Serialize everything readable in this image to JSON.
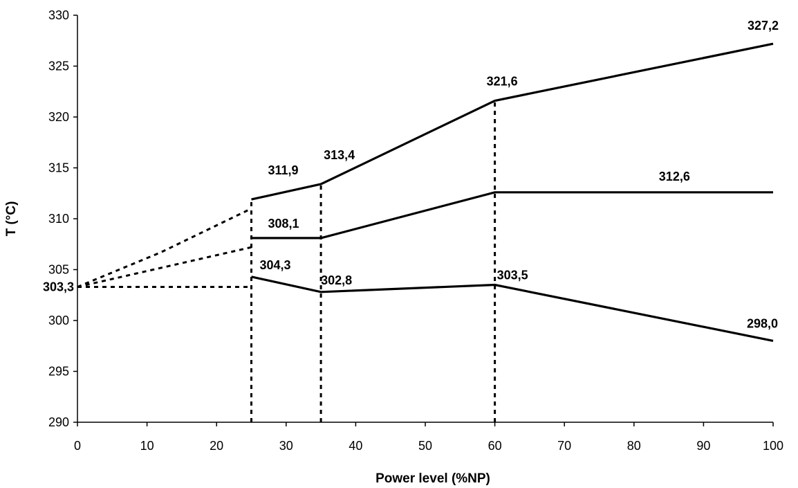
{
  "chart_data": {
    "type": "line",
    "xlabel": "Power level (%NP)",
    "ylabel": "T (°C)",
    "xlim": [
      0,
      100
    ],
    "ylim": [
      290,
      330
    ],
    "xticks": [
      0,
      10,
      20,
      30,
      40,
      50,
      60,
      70,
      80,
      90,
      100
    ],
    "yticks": [
      290,
      295,
      300,
      305,
      310,
      315,
      320,
      325,
      330
    ],
    "grid": false,
    "series": [
      {
        "style": "solid",
        "x": [
          25,
          35,
          60,
          100
        ],
        "y": [
          311.9,
          313.4,
          321.6,
          327.2
        ]
      },
      {
        "style": "solid",
        "x": [
          25,
          35,
          60,
          100
        ],
        "y": [
          308.1,
          308.1,
          312.6,
          312.6
        ]
      },
      {
        "style": "solid",
        "x": [
          25,
          35,
          60,
          100
        ],
        "y": [
          304.3,
          302.8,
          303.5,
          298.0
        ]
      },
      {
        "style": "dashed",
        "x": [
          0,
          12,
          25
        ],
        "y": [
          303.3,
          306.7,
          311.0
        ]
      },
      {
        "style": "dashed",
        "x": [
          0,
          25
        ],
        "y": [
          303.3,
          307.2
        ]
      },
      {
        "style": "dashed",
        "x": [
          0,
          25
        ],
        "y": [
          303.3,
          303.3
        ]
      },
      {
        "style": "dashed",
        "x": [
          25,
          25
        ],
        "y": [
          290,
          311.9
        ]
      },
      {
        "style": "dashed",
        "x": [
          35,
          35
        ],
        "y": [
          290,
          313.4
        ]
      },
      {
        "style": "dashed",
        "x": [
          60,
          60
        ],
        "y": [
          290,
          321.6
        ]
      }
    ],
    "annotations": [
      {
        "text": "303,3",
        "x": 0,
        "y": 303.3
      },
      {
        "text": "311,9",
        "x": 25,
        "y": 311.9
      },
      {
        "text": "313,4",
        "x": 35,
        "y": 313.4
      },
      {
        "text": "321,6",
        "x": 60,
        "y": 321.6
      },
      {
        "text": "327,2",
        "x": 100,
        "y": 327.2
      },
      {
        "text": "308,1",
        "x": 25,
        "y": 308.1
      },
      {
        "text": "312,6",
        "x": 80,
        "y": 312.6
      },
      {
        "text": "304,3",
        "x": 25,
        "y": 304.3
      },
      {
        "text": "302,8",
        "x": 35,
        "y": 302.8
      },
      {
        "text": "303,5",
        "x": 60,
        "y": 303.5
      },
      {
        "text": "298,0",
        "x": 100,
        "y": 298.0
      }
    ]
  }
}
